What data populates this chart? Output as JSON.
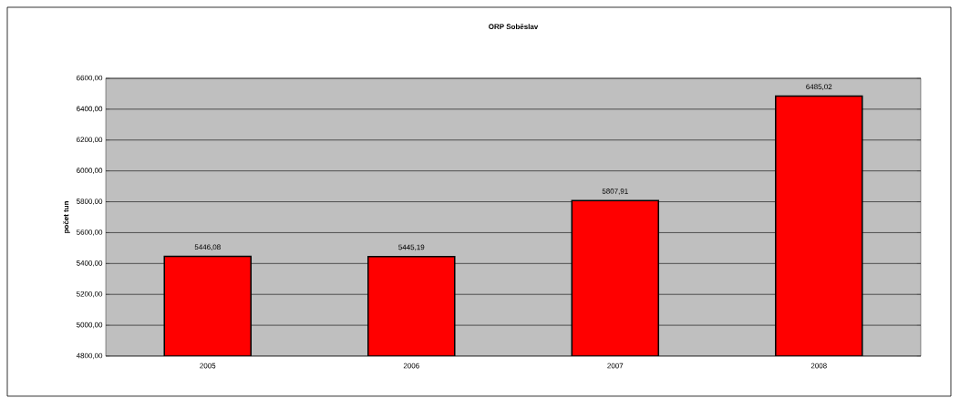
{
  "chart_data": {
    "type": "bar",
    "title": "ORP Soběslav",
    "ylabel": "počet tun",
    "categories": [
      "2005",
      "2006",
      "2007",
      "2008"
    ],
    "values": [
      5446.08,
      5445.19,
      5807.91,
      6485.02
    ],
    "value_labels": [
      "5446,08",
      "5445,19",
      "5807,91",
      "6485,02"
    ],
    "color": "#ff0000",
    "ylim": [
      4800,
      6600
    ],
    "yticks": [
      {
        "value": 4800,
        "label": "4800,00"
      },
      {
        "value": 5000,
        "label": "5000,00"
      },
      {
        "value": 5200,
        "label": "5200,00"
      },
      {
        "value": 5400,
        "label": "5400,00"
      },
      {
        "value": 5600,
        "label": "5600,00"
      },
      {
        "value": 5800,
        "label": "5800,00"
      },
      {
        "value": 6000,
        "label": "6000,00"
      },
      {
        "value": 6200,
        "label": "6200,00"
      },
      {
        "value": 6400,
        "label": "6400,00"
      },
      {
        "value": 6600,
        "label": "6600,00"
      }
    ],
    "grid": "y"
  }
}
